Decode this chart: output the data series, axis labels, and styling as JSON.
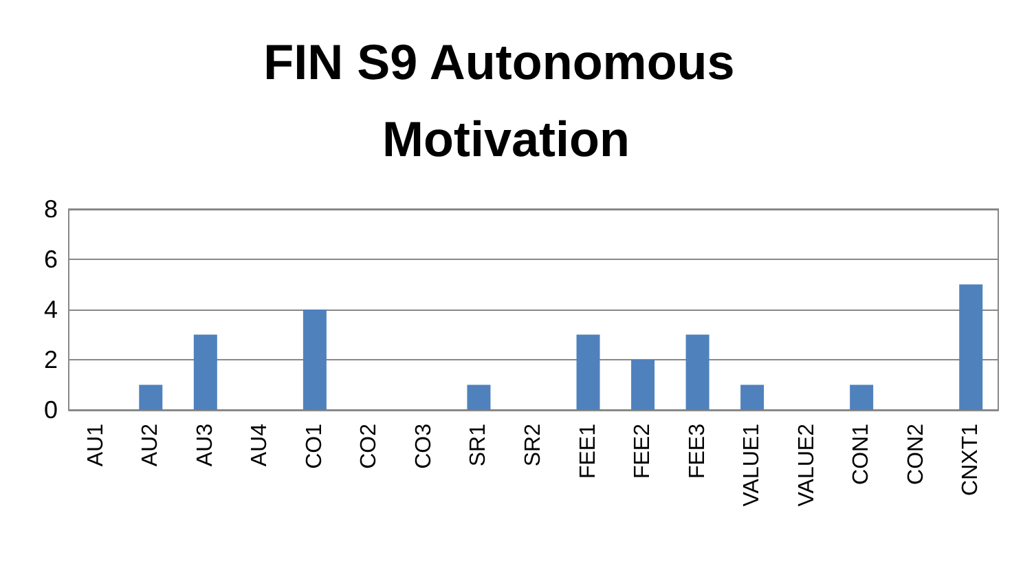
{
  "chart_data": {
    "type": "bar",
    "title": "FIN S9 Autonomous Motivation",
    "categories": [
      "AU1",
      "AU2",
      "AU3",
      "AU4",
      "CO1",
      "CO2",
      "CO3",
      "SR1",
      "SR2",
      "FEE1",
      "FEE2",
      "FEE3",
      "VALUE1",
      "VALUE2",
      "CON1",
      "CON2",
      "CNXT1"
    ],
    "values": [
      0,
      1,
      3,
      0,
      4,
      0,
      0,
      1,
      0,
      3,
      2,
      3,
      1,
      0,
      1,
      0,
      5
    ],
    "color": "#4f81bd",
    "ylim": [
      0,
      8
    ],
    "yticks": [
      0,
      2,
      4,
      6,
      8
    ],
    "grid": "y"
  }
}
